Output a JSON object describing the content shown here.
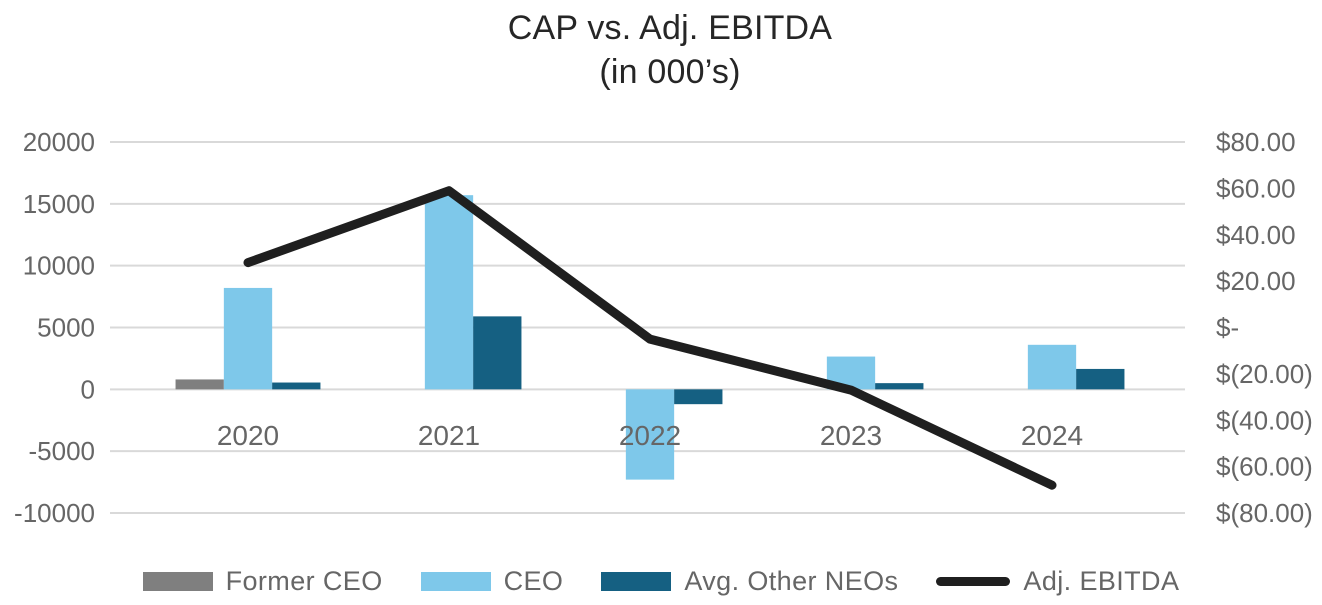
{
  "chart_title": "CAP vs. Adj. EBITDA",
  "chart_subtitle": "(in 000’s)",
  "chart_data": {
    "type": "combo-bar-line",
    "title": "CAP vs. Adj. EBITDA",
    "subtitle": "(in 000’s)",
    "categories": [
      "2020",
      "2021",
      "2022",
      "2023",
      "2024"
    ],
    "series": [
      {
        "name": "Former CEO",
        "type": "bar",
        "axis": "left",
        "color": "#7F7F7F",
        "values": [
          800,
          0,
          0,
          0,
          0
        ]
      },
      {
        "name": "CEO",
        "type": "bar",
        "axis": "left",
        "color": "#7EC8EA",
        "values": [
          8200,
          15700,
          -7300,
          2650,
          3600
        ]
      },
      {
        "name": "Avg. Other NEOs",
        "type": "bar",
        "axis": "left",
        "color": "#156082",
        "values": [
          550,
          5900,
          -1200,
          500,
          1650
        ]
      },
      {
        "name": "Adj. EBITDA",
        "type": "line",
        "axis": "right",
        "color": "#1F1F1F",
        "values": [
          28,
          59,
          -5,
          -27,
          -68
        ]
      }
    ],
    "left_axis": {
      "min": -10000,
      "max": 20000,
      "ticks": [
        20000,
        15000,
        10000,
        5000,
        0,
        -5000,
        -10000
      ],
      "labels": [
        "20000",
        "15000",
        "10000",
        "5000",
        "0",
        "-5000",
        "-10000"
      ]
    },
    "right_axis": {
      "min": -80,
      "max": 80,
      "ticks": [
        80,
        60,
        40,
        20,
        0,
        -20,
        -40,
        -60,
        -80
      ],
      "labels": [
        "$80.00",
        "$60.00",
        "$40.00",
        "$20.00",
        "$-",
        "$(20.00)",
        "$(40.00)",
        "$(60.00)",
        "$(80.00)"
      ]
    },
    "grid": true,
    "legend_position": "bottom",
    "colors": {
      "gridline": "#D9D9D9",
      "axis_text": "#666666",
      "title_text": "#262626",
      "background": "#FFFFFF"
    }
  }
}
